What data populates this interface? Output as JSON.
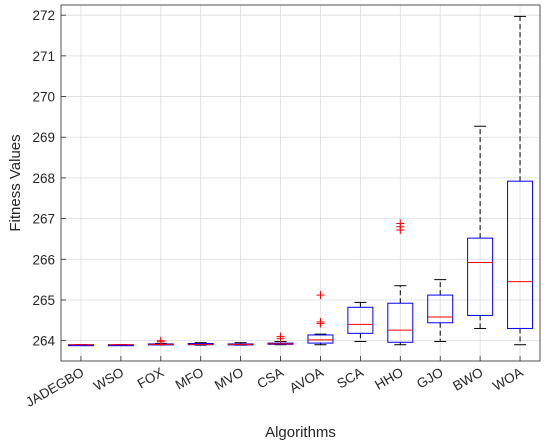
{
  "chart_data": {
    "type": "box",
    "xlabel": "Algorithms",
    "ylabel": "Fitness Values",
    "ylim": [
      263.5,
      272.25
    ],
    "yticks": [
      264,
      265,
      266,
      267,
      268,
      269,
      270,
      271,
      272
    ],
    "grid": true,
    "colors": {
      "box": "#0000ff",
      "median": "#ff0000",
      "outlier": "#ff0000",
      "whisker": "#000000",
      "grid": "#dcdcdc",
      "axis": "#262626"
    },
    "categories": [
      "JADEGBO",
      "WSO",
      "FOX",
      "MFO",
      "MVO",
      "CSA",
      "AVOA",
      "SCA",
      "HHO",
      "GJO",
      "BWO",
      "WOA"
    ],
    "boxes": [
      {
        "name": "JADEGBO",
        "lower_whisker": 263.9,
        "q1": 263.9,
        "median": 263.9,
        "q3": 263.9,
        "upper_whisker": 263.9,
        "outliers": []
      },
      {
        "name": "WSO",
        "lower_whisker": 263.9,
        "q1": 263.9,
        "median": 263.9,
        "q3": 263.9,
        "upper_whisker": 263.9,
        "outliers": []
      },
      {
        "name": "FOX",
        "lower_whisker": 263.9,
        "q1": 263.9,
        "median": 263.91,
        "q3": 263.92,
        "upper_whisker": 263.93,
        "outliers": [
          263.97,
          264.0
        ]
      },
      {
        "name": "MFO",
        "lower_whisker": 263.89,
        "q1": 263.9,
        "median": 263.91,
        "q3": 263.93,
        "upper_whisker": 263.95,
        "outliers": []
      },
      {
        "name": "MVO",
        "lower_whisker": 263.89,
        "q1": 263.9,
        "median": 263.91,
        "q3": 263.92,
        "upper_whisker": 263.95,
        "outliers": []
      },
      {
        "name": "CSA",
        "lower_whisker": 263.9,
        "q1": 263.91,
        "median": 263.92,
        "q3": 263.94,
        "upper_whisker": 263.98,
        "outliers": [
          264.05,
          264.1
        ]
      },
      {
        "name": "AVOA",
        "lower_whisker": 263.9,
        "q1": 263.94,
        "median": 264.02,
        "q3": 264.14,
        "upper_whisker": 264.16,
        "outliers": [
          264.42,
          264.46,
          265.12
        ]
      },
      {
        "name": "SCA",
        "lower_whisker": 263.98,
        "q1": 264.18,
        "median": 264.4,
        "q3": 264.82,
        "upper_whisker": 264.94,
        "outliers": []
      },
      {
        "name": "HHO",
        "lower_whisker": 263.9,
        "q1": 263.96,
        "median": 264.26,
        "q3": 264.92,
        "upper_whisker": 265.35,
        "outliers": [
          266.72,
          266.8,
          266.88
        ]
      },
      {
        "name": "GJO",
        "lower_whisker": 263.98,
        "q1": 264.44,
        "median": 264.58,
        "q3": 265.12,
        "upper_whisker": 265.5,
        "outliers": []
      },
      {
        "name": "BWO",
        "lower_whisker": 264.3,
        "q1": 264.62,
        "median": 265.92,
        "q3": 266.52,
        "upper_whisker": 269.27,
        "outliers": []
      },
      {
        "name": "WOA",
        "lower_whisker": 263.9,
        "q1": 264.3,
        "median": 265.45,
        "q3": 267.92,
        "upper_whisker": 271.97,
        "outliers": []
      }
    ]
  }
}
